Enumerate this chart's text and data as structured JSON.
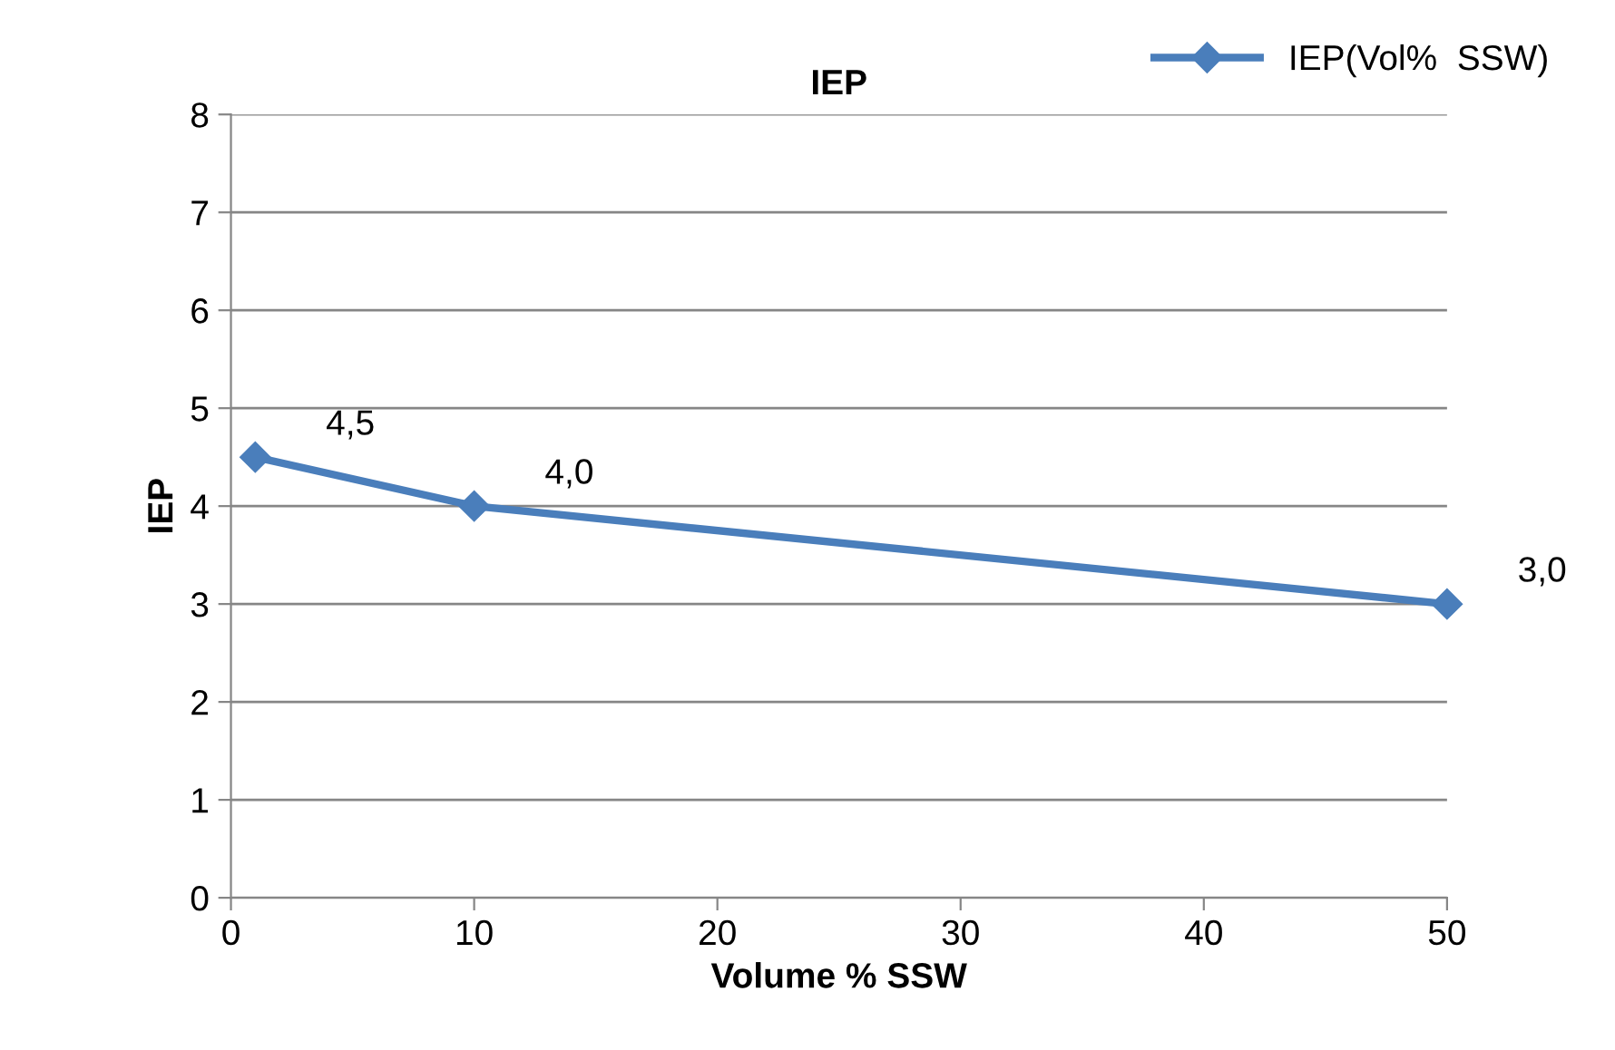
{
  "chart_data": {
    "type": "line",
    "title": "IEP",
    "xlabel": "Volume % SSW",
    "ylabel": "IEP",
    "x": [
      1,
      10,
      50
    ],
    "series": [
      {
        "name": "IEP(Vol%  SSW)",
        "color": "#4a7ebb",
        "values": [
          4.5,
          4.0,
          3.0
        ],
        "value_labels": [
          "4,5",
          "4,0",
          "3,0"
        ]
      }
    ],
    "xlim": [
      0,
      50
    ],
    "xticks": [
      0,
      10,
      20,
      30,
      40,
      50
    ],
    "ylim": [
      0,
      8
    ],
    "yticks": [
      0,
      1,
      2,
      3,
      4,
      5,
      6,
      7,
      8
    ],
    "grid": "y",
    "legend": "top right",
    "marker": "diamond",
    "line_style": "solid"
  }
}
